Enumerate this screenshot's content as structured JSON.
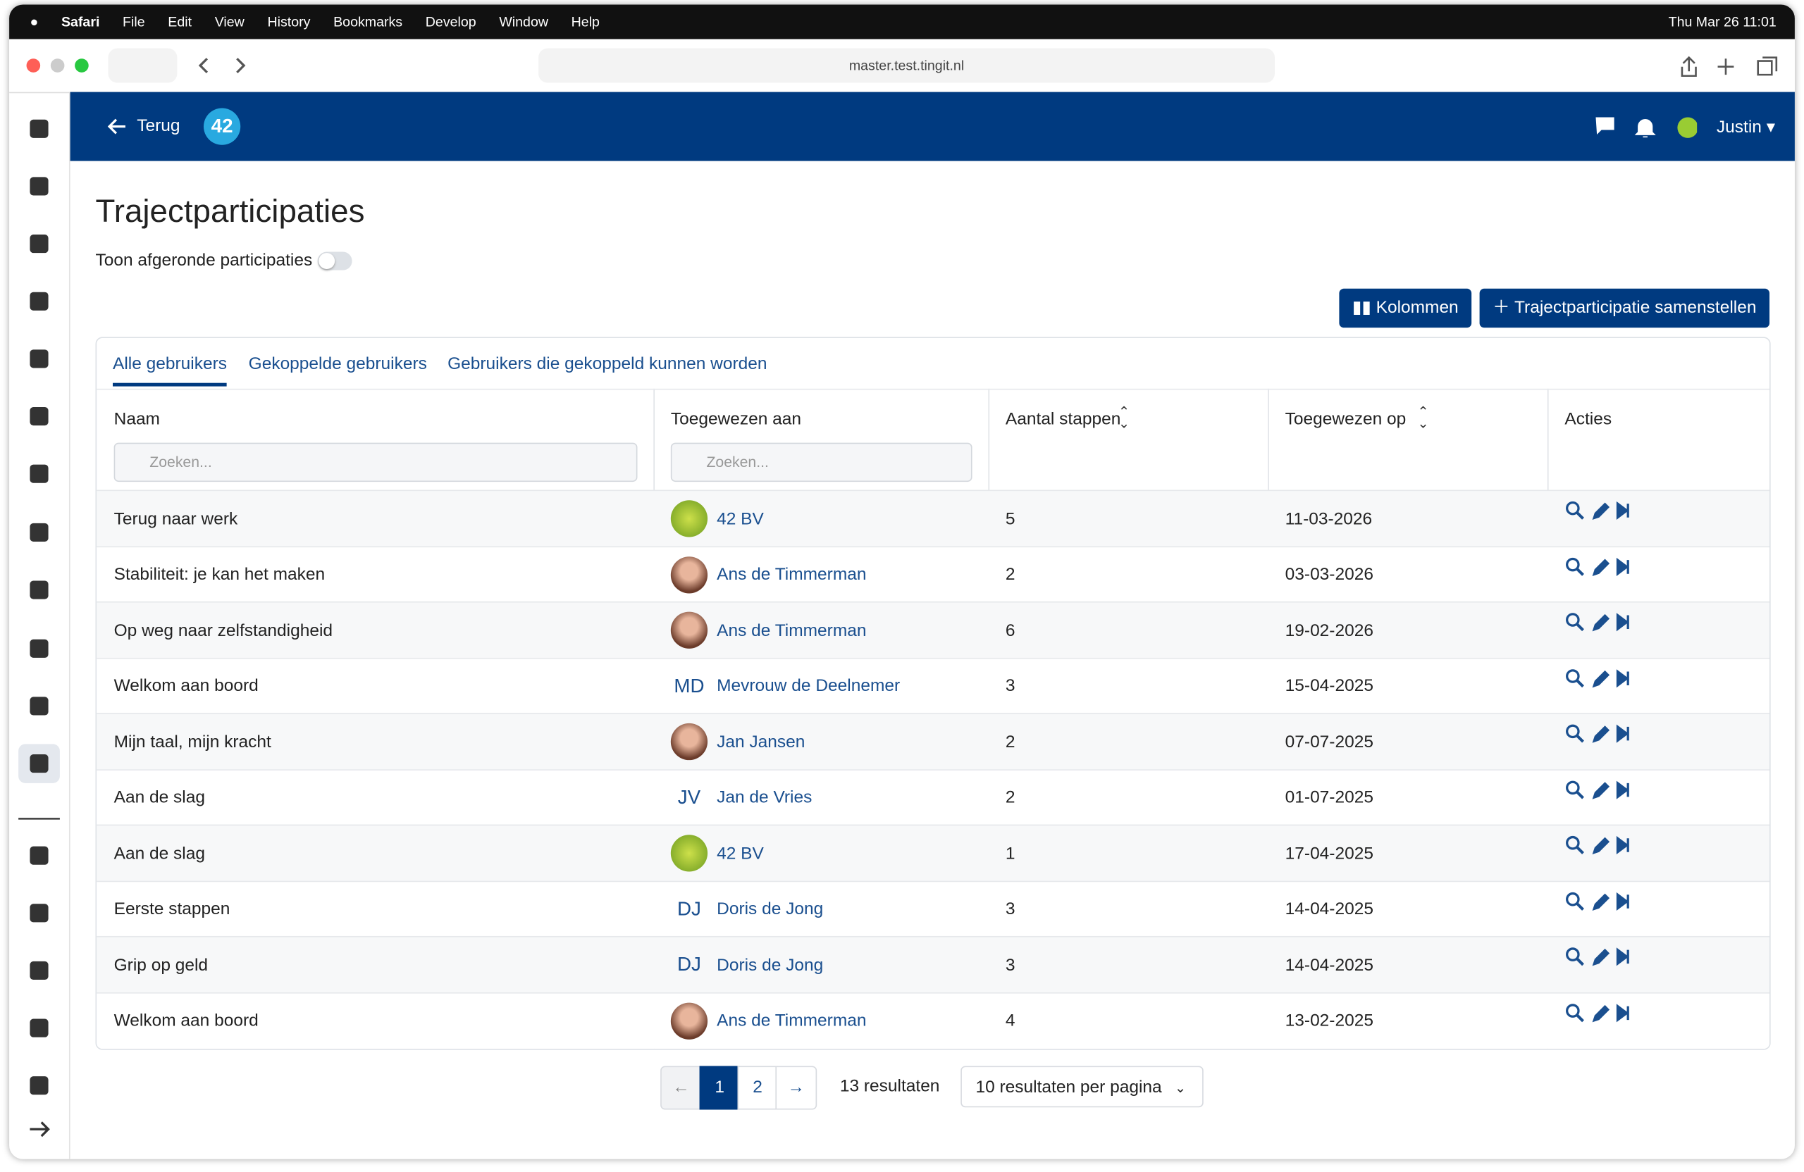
{
  "menubar": {
    "app": "Safari",
    "menus": [
      "File",
      "Edit",
      "View",
      "History",
      "Bookmarks",
      "Develop",
      "Window",
      "Help"
    ],
    "clock": "Thu Mar 26  11:01"
  },
  "browser": {
    "url": "master.test.tingit.nl"
  },
  "header": {
    "back": "Terug",
    "logo": "42",
    "user": "Justin"
  },
  "page": {
    "title": "Trajectparticipaties",
    "toggle_label": "Toon afgeronde participaties",
    "buttons": [
      "Kolommen",
      "Trajectparticipatie samenstellen"
    ]
  },
  "tabs": [
    "Alle gebruikers",
    "Gekoppelde gebruikers",
    "Gebruikers die gekoppeld kunnen worden"
  ],
  "table": {
    "columns": [
      "Naam",
      "Toegewezen aan",
      "Aantal stappen",
      "Toegewezen op",
      "Acties"
    ],
    "search_placeholder": "Zoeken...",
    "rows": [
      {
        "name": "Terug naar werk",
        "avatar": "logo",
        "assignee": "42 BV",
        "steps": "5",
        "date": "11-03-2026"
      },
      {
        "name": "Stabiliteit: je kan het maken",
        "avatar": "photo",
        "assignee": "Ans de Timmerman",
        "steps": "2",
        "date": "03-03-2026"
      },
      {
        "name": "Op weg naar zelfstandigheid",
        "avatar": "photo",
        "assignee": "Ans de Timmerman",
        "steps": "6",
        "date": "19-02-2026"
      },
      {
        "name": "Welkom aan boord",
        "avatar": "initials",
        "initials": "MD",
        "assignee": "Mevrouw de Deelnemer",
        "steps": "3",
        "date": "15-04-2025"
      },
      {
        "name": "Mijn taal, mijn kracht",
        "avatar": "photo",
        "assignee": "Jan Jansen",
        "steps": "2",
        "date": "07-07-2025"
      },
      {
        "name": "Aan de slag",
        "avatar": "initials",
        "initials": "JV",
        "assignee": "Jan de Vries",
        "steps": "2",
        "date": "01-07-2025"
      },
      {
        "name": "Aan de slag",
        "avatar": "logo",
        "assignee": "42 BV",
        "steps": "1",
        "date": "17-04-2025"
      },
      {
        "name": "Eerste stappen",
        "avatar": "initials",
        "initials": "DJ",
        "assignee": "Doris de Jong",
        "steps": "3",
        "date": "14-04-2025"
      },
      {
        "name": "Grip op geld",
        "avatar": "initials",
        "initials": "DJ",
        "assignee": "Doris de Jong",
        "steps": "3",
        "date": "14-04-2025"
      },
      {
        "name": "Welkom aan boord",
        "avatar": "photo",
        "assignee": "Ans de Timmerman",
        "steps": "4",
        "date": "13-02-2025"
      }
    ]
  },
  "pagination": {
    "pages": [
      "1",
      "2"
    ],
    "results": "13 resultaten",
    "per_page": "10 resultaten per pagina"
  }
}
